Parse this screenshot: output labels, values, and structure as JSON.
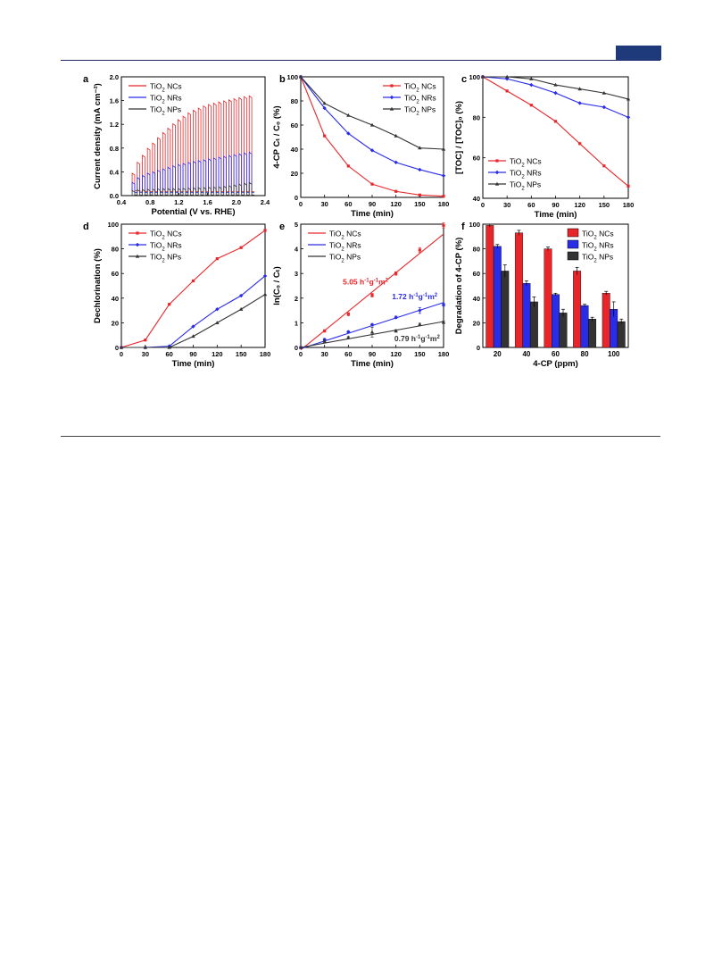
{
  "colors": {
    "NCs": "#e8262a",
    "NRs": "#2a2de8",
    "NPs": "#333333",
    "rule": "#1f2a6b",
    "tab": "#1f3a7a"
  },
  "chart_data": [
    {
      "panel": "a",
      "type": "line",
      "xlabel": "Potential (V vs. RHE)",
      "ylabel": "Current density (mA cm⁻²)",
      "xlim": [
        0.4,
        2.4
      ],
      "ylim": [
        0.0,
        2.0
      ],
      "xticks": [
        "0.4",
        "0.8",
        "1.2",
        "1.6",
        "2.0",
        "2.4"
      ],
      "yticks": [
        "0.0",
        "0.4",
        "0.8",
        "1.2",
        "1.6",
        "2.0"
      ],
      "legend": [
        {
          "prefix": "TiO",
          "sub": "2",
          "suffix": " NCs"
        },
        {
          "prefix": "TiO",
          "sub": "2",
          "suffix": " NRs"
        },
        {
          "prefix": "TiO",
          "sub": "2",
          "suffix": " NPs"
        }
      ],
      "legend_position": "top-left",
      "pulse_range": [
        0.55,
        2.25
      ],
      "series": [
        {
          "name": "TiO2 NCs",
          "key": "NCs",
          "potential": [
            0.55,
            0.65,
            0.8,
            1.0,
            1.2,
            1.4,
            1.6,
            1.8,
            2.0,
            2.2
          ],
          "on": [
            0.28,
            0.55,
            0.8,
            1.05,
            1.26,
            1.42,
            1.52,
            1.58,
            1.63,
            1.68
          ],
          "off": [
            0.08,
            0.07,
            0.07,
            0.07,
            0.07,
            0.07,
            0.07,
            0.07,
            0.07,
            0.07
          ]
        },
        {
          "name": "TiO2 NRs",
          "key": "NRs",
          "potential": [
            0.55,
            0.65,
            0.8,
            1.0,
            1.2,
            1.4,
            1.6,
            1.8,
            2.0,
            2.2
          ],
          "on": [
            0.18,
            0.3,
            0.38,
            0.45,
            0.52,
            0.57,
            0.61,
            0.65,
            0.69,
            0.73
          ],
          "off": [
            0.05,
            0.05,
            0.05,
            0.05,
            0.05,
            0.05,
            0.05,
            0.05,
            0.05,
            0.05
          ]
        },
        {
          "name": "TiO2 NPs",
          "key": "NPs",
          "potential": [
            0.55,
            0.65,
            0.8,
            1.0,
            1.2,
            1.4,
            1.6,
            1.8,
            2.0,
            2.2
          ],
          "on": [
            0.08,
            0.1,
            0.11,
            0.12,
            0.12,
            0.13,
            0.14,
            0.15,
            0.18,
            0.22
          ],
          "off": [
            0.01,
            0.01,
            0.01,
            0.01,
            0.01,
            0.01,
            0.01,
            0.01,
            0.01,
            0.01
          ]
        }
      ]
    },
    {
      "panel": "b",
      "type": "line",
      "xlabel": "Time (min)",
      "ylabel": "4-CP Cₜ / C₀ (%)",
      "xlim": [
        0,
        180
      ],
      "ylim": [
        0,
        100
      ],
      "xticks": [
        "0",
        "30",
        "60",
        "90",
        "120",
        "150",
        "180"
      ],
      "yticks": [
        "0",
        "20",
        "40",
        "60",
        "80",
        "100"
      ],
      "legend": [
        {
          "prefix": "TiO",
          "sub": "2",
          "suffix": " NCs"
        },
        {
          "prefix": "TiO",
          "sub": "2",
          "suffix": " NRs"
        },
        {
          "prefix": "TiO",
          "sub": "2",
          "suffix": " NPs"
        }
      ],
      "legend_position": "top-right",
      "x": [
        0,
        30,
        60,
        90,
        120,
        150,
        180
      ],
      "series": [
        {
          "name": "TiO2 NCs",
          "key": "NCs",
          "values": [
            100,
            51,
            26,
            11,
            5,
            2,
            1
          ]
        },
        {
          "name": "TiO2 NRs",
          "key": "NRs",
          "values": [
            100,
            74,
            53,
            39,
            29,
            23,
            18
          ]
        },
        {
          "name": "TiO2 NPs",
          "key": "NPs",
          "values": [
            100,
            78,
            68,
            60,
            51,
            41,
            40
          ]
        }
      ]
    },
    {
      "panel": "c",
      "type": "line",
      "xlabel": "Time (min)",
      "ylabel": "[TOC] / [TOC]₀ (%)",
      "xlim": [
        0,
        180
      ],
      "ylim": [
        40,
        100
      ],
      "xticks": [
        "0",
        "30",
        "60",
        "90",
        "120",
        "150",
        "180"
      ],
      "yticks": [
        "40",
        "60",
        "80",
        "100"
      ],
      "legend": [
        {
          "prefix": "TiO",
          "sub": "2",
          "suffix": " NCs"
        },
        {
          "prefix": "TiO",
          "sub": "2",
          "suffix": " NRs"
        },
        {
          "prefix": "TiO",
          "sub": "2",
          "suffix": " NPs"
        }
      ],
      "legend_position": "bottom-left",
      "x": [
        0,
        30,
        60,
        90,
        120,
        150,
        180
      ],
      "series": [
        {
          "name": "TiO2 NCs",
          "key": "NCs",
          "values": [
            100,
            93,
            86,
            78,
            67,
            56,
            46
          ]
        },
        {
          "name": "TiO2 NRs",
          "key": "NRs",
          "values": [
            100,
            99,
            96,
            92,
            87,
            85,
            80
          ]
        },
        {
          "name": "TiO2 NPs",
          "key": "NPs",
          "values": [
            100,
            100,
            99,
            96,
            94,
            92,
            89
          ]
        }
      ]
    },
    {
      "panel": "d",
      "type": "line",
      "xlabel": "Time (min)",
      "ylabel": "Dechlorination (%)",
      "xlim": [
        0,
        180
      ],
      "ylim": [
        0,
        100
      ],
      "xticks": [
        "0",
        "30",
        "60",
        "90",
        "120",
        "150",
        "180"
      ],
      "yticks": [
        "0",
        "20",
        "40",
        "60",
        "80",
        "100"
      ],
      "legend": [
        {
          "prefix": "TiO",
          "sub": "2",
          "suffix": " NCs"
        },
        {
          "prefix": "TiO",
          "sub": "2",
          "suffix": " NRs"
        },
        {
          "prefix": "TiO",
          "sub": "2",
          "suffix": " NPs"
        }
      ],
      "legend_position": "top-left",
      "x": [
        0,
        30,
        60,
        90,
        120,
        150,
        180
      ],
      "series": [
        {
          "name": "TiO2 NCs",
          "key": "NCs",
          "values": [
            0,
            6,
            35,
            54,
            72,
            81,
            95
          ]
        },
        {
          "name": "TiO2 NRs",
          "key": "NRs",
          "values": [
            0,
            0,
            1,
            17,
            31,
            42,
            58
          ]
        },
        {
          "name": "TiO2 NPs",
          "key": "NPs",
          "values": [
            0,
            0,
            0,
            9,
            20,
            31,
            43
          ]
        }
      ]
    },
    {
      "panel": "e",
      "type": "scatter",
      "xlabel": "Time (min)",
      "ylabel": "ln(C₀ / Cₜ)",
      "xlim": [
        0,
        180
      ],
      "ylim": [
        0,
        5
      ],
      "xticks": [
        "0",
        "30",
        "60",
        "90",
        "120",
        "150",
        "180"
      ],
      "yticks": [
        "0",
        "1",
        "2",
        "3",
        "4",
        "5"
      ],
      "legend": [
        {
          "prefix": "TiO",
          "sub": "2",
          "suffix": " NCs"
        },
        {
          "prefix": "TiO",
          "sub": "2",
          "suffix": " NRs"
        },
        {
          "prefix": "TiO",
          "sub": "2",
          "suffix": " NPs"
        }
      ],
      "legend_position": "top-left",
      "x": [
        0,
        30,
        60,
        90,
        120,
        150,
        180
      ],
      "series": [
        {
          "name": "TiO2 NCs",
          "key": "NCs",
          "values": [
            0,
            0.67,
            1.35,
            2.12,
            3.0,
            3.95,
            4.95
          ],
          "err": [
            0,
            0.05,
            0.06,
            0.07,
            0.07,
            0.1,
            0.1
          ],
          "fit": [
            -0.1,
            4.6
          ]
        },
        {
          "name": "TiO2 NRs",
          "key": "NRs",
          "values": [
            0,
            0.32,
            0.63,
            0.92,
            1.22,
            1.5,
            1.73
          ],
          "err": [
            0,
            0.04,
            0.04,
            0.05,
            0.05,
            0.12,
            0.06
          ],
          "fit": [
            -0.05,
            1.82
          ]
        },
        {
          "name": "TiO2 NPs",
          "key": "NPs",
          "values": [
            0,
            0.25,
            0.4,
            0.62,
            0.67,
            0.93,
            1.02
          ],
          "err": [
            0,
            0.04,
            0.04,
            0.2,
            0.05,
            0.05,
            0.05
          ],
          "fit": [
            0.0,
            1.05
          ]
        }
      ],
      "annotations": [
        {
          "key": "NCs",
          "base": "5.05 h",
          "exp1": "-1",
          "mid": "g",
          "exp2": "-1",
          "tail": "m",
          "exp3": "2",
          "x": 53,
          "y": 2.55
        },
        {
          "key": "NRs",
          "base": "1.72 h",
          "exp1": "-1",
          "mid": "g",
          "exp2": "-1",
          "tail": "m",
          "exp3": "2",
          "x": 115,
          "y": 1.95
        },
        {
          "key": "NPs",
          "base": "0.79 h",
          "exp1": "-1",
          "mid": "g",
          "exp2": "-1",
          "tail": "m",
          "exp3": "2",
          "x": 118,
          "y": 0.25
        }
      ]
    },
    {
      "panel": "f",
      "type": "bar",
      "xlabel": "4-CP (ppm)",
      "ylabel": "Degradation of 4-CP (%)",
      "ylim": [
        0,
        100
      ],
      "categories": [
        "20",
        "40",
        "60",
        "80",
        "100"
      ],
      "yticks": [
        "0",
        "20",
        "40",
        "60",
        "80",
        "100"
      ],
      "legend": [
        {
          "prefix": "TiO",
          "sub": "2",
          "suffix": " NCs"
        },
        {
          "prefix": "TiO",
          "sub": "2",
          "suffix": " NRs"
        },
        {
          "prefix": "TiO",
          "sub": "2",
          "suffix": " NPs"
        }
      ],
      "legend_position": "top-right",
      "series": [
        {
          "name": "TiO2 NCs",
          "key": "NCs",
          "values": [
            99,
            93,
            80,
            62,
            44
          ],
          "err": [
            1,
            2,
            1.5,
            3,
            1.5
          ]
        },
        {
          "name": "TiO2 NRs",
          "key": "NRs",
          "values": [
            82,
            52,
            43,
            34,
            31
          ],
          "err": [
            1.5,
            2,
            1,
            1,
            6
          ]
        },
        {
          "name": "TiO2 NPs",
          "key": "NPs",
          "values": [
            62,
            37,
            28,
            23,
            21
          ],
          "err": [
            5,
            4,
            3,
            1.5,
            2
          ]
        }
      ]
    }
  ]
}
